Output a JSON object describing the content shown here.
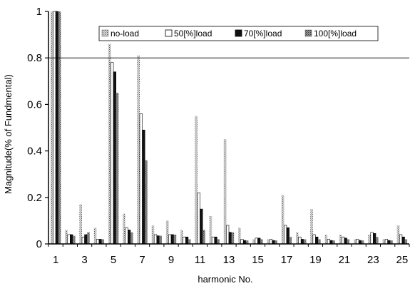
{
  "chart_data": {
    "type": "bar",
    "title": "",
    "xlabel": "harmonic No.",
    "ylabel": "Magnitude(% of Fundmental)",
    "ylim": [
      0,
      1
    ],
    "yticks": [
      "0",
      "0.2",
      "0.4",
      "0.6",
      "0.8",
      "1"
    ],
    "ytick_values": [
      0,
      0.2,
      0.4,
      0.6,
      0.8,
      1
    ],
    "categories": [
      1,
      2,
      3,
      4,
      5,
      6,
      7,
      8,
      9,
      10,
      11,
      12,
      13,
      14,
      15,
      16,
      17,
      18,
      19,
      20,
      21,
      22,
      23,
      24,
      25
    ],
    "xtick_labels": [
      "1",
      "3",
      "5",
      "7",
      "9",
      "11",
      "13",
      "15",
      "17",
      "19",
      "21",
      "23",
      "25"
    ],
    "xtick_values": [
      1,
      3,
      5,
      7,
      9,
      11,
      13,
      15,
      17,
      19,
      21,
      23,
      25
    ],
    "reference_line": 0.8,
    "grid": false,
    "legend_position": "top-right",
    "series": [
      {
        "name": "no-load",
        "color": "#a0a0a0",
        "pattern": "dots",
        "values": [
          1.0,
          0.06,
          0.17,
          0.07,
          0.86,
          0.13,
          0.81,
          0.08,
          0.1,
          0.06,
          0.55,
          0.12,
          0.45,
          0.07,
          0.02,
          0.02,
          0.21,
          0.05,
          0.15,
          0.04,
          0.04,
          0.02,
          0.04,
          0.02,
          0.08
        ]
      },
      {
        "name": "50[%]load",
        "color": "#ffffff",
        "pattern": "solid",
        "values": [
          1.0,
          0.04,
          0.03,
          0.02,
          0.78,
          0.07,
          0.56,
          0.04,
          0.04,
          0.03,
          0.22,
          0.03,
          0.08,
          0.02,
          0.025,
          0.02,
          0.08,
          0.03,
          0.04,
          0.02,
          0.03,
          0.02,
          0.05,
          0.02,
          0.04
        ]
      },
      {
        "name": "70[%]load",
        "color": "#111111",
        "pattern": "solid",
        "values": [
          1.0,
          0.04,
          0.04,
          0.02,
          0.74,
          0.06,
          0.49,
          0.035,
          0.04,
          0.03,
          0.15,
          0.03,
          0.05,
          0.015,
          0.025,
          0.015,
          0.07,
          0.02,
          0.03,
          0.015,
          0.025,
          0.015,
          0.045,
          0.015,
          0.03
        ]
      },
      {
        "name": "100[%]load",
        "color": "#8c8c8c",
        "pattern": "dots",
        "values": [
          1.0,
          0.035,
          0.05,
          0.02,
          0.65,
          0.05,
          0.36,
          0.035,
          0.04,
          0.02,
          0.06,
          0.02,
          0.05,
          0.015,
          0.02,
          0.015,
          0.03,
          0.02,
          0.02,
          0.015,
          0.02,
          0.015,
          0.03,
          0.015,
          0.02
        ]
      }
    ]
  }
}
